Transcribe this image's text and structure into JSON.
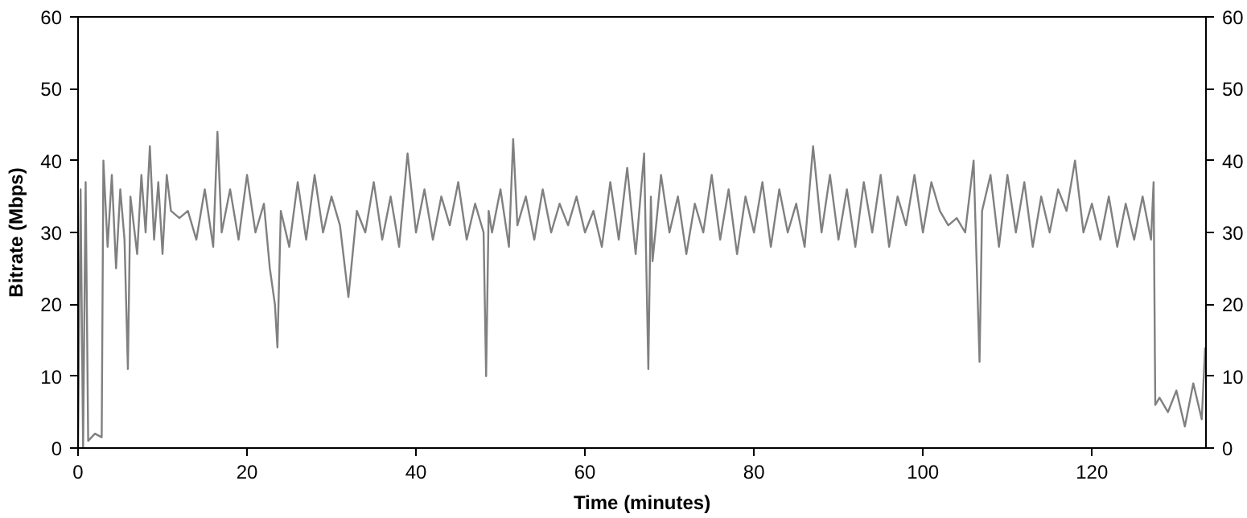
{
  "chart_data": {
    "type": "line",
    "xlabel": "Time (minutes)",
    "ylabel": "Bitrate (Mbps)",
    "xlim": [
      0,
      133.5
    ],
    "xticks": [
      0,
      20,
      40,
      60,
      80,
      100,
      120
    ],
    "ylim": [
      0,
      60
    ],
    "yticks": [
      0,
      10,
      20,
      30,
      40,
      50,
      60
    ],
    "y2lim": [
      0,
      60
    ],
    "y2ticks": [
      0,
      10,
      20,
      30,
      40,
      50,
      60
    ],
    "grid": false,
    "marker": "none",
    "line_style": "solid",
    "series": [
      {
        "color": "#808080",
        "x": [
          0,
          0.3,
          0.6,
          0.9,
          1.2,
          2,
          2.8,
          3,
          3.5,
          4,
          4.5,
          5,
          5.5,
          5.9,
          6.2,
          7,
          7.5,
          8,
          8.5,
          9,
          9.5,
          10,
          10.5,
          11,
          12,
          13,
          14,
          15,
          16,
          16.5,
          17,
          18,
          19,
          20,
          21,
          22,
          22.7,
          23.3,
          23.6,
          24,
          25,
          26,
          27,
          28,
          29,
          30,
          31,
          32,
          33,
          34,
          35,
          36,
          37,
          38,
          39,
          40,
          41,
          42,
          43,
          44,
          45,
          46,
          47,
          48,
          48.3,
          48.6,
          49,
          50,
          51,
          51.5,
          52,
          53,
          54,
          55,
          56,
          57,
          58,
          59,
          60,
          61,
          62,
          63,
          64,
          65,
          66,
          67,
          67.5,
          67.8,
          68,
          69,
          70,
          71,
          72,
          73,
          74,
          75,
          76,
          77,
          78,
          79,
          80,
          81,
          82,
          83,
          84,
          85,
          86,
          87,
          88,
          89,
          90,
          91,
          92,
          93,
          94,
          95,
          96,
          97,
          98,
          99,
          100,
          101,
          102,
          103,
          104,
          105,
          106,
          106.5,
          106.7,
          107,
          108,
          109,
          110,
          111,
          112,
          113,
          114,
          115,
          116,
          117,
          118,
          119,
          120,
          121,
          122,
          123,
          124,
          125,
          126,
          127,
          127.3,
          127.5,
          128,
          129,
          130,
          131,
          132,
          133,
          133.4
        ],
        "values": [
          0,
          36,
          0,
          37,
          1,
          2,
          1.5,
          40,
          28,
          38,
          25,
          36,
          29,
          11,
          35,
          27,
          38,
          30,
          42,
          29,
          37,
          27,
          38,
          33,
          32,
          33,
          29,
          36,
          28,
          44,
          30,
          36,
          29,
          38,
          30,
          34,
          25,
          20,
          14,
          33,
          28,
          37,
          29,
          38,
          30,
          35,
          31,
          21,
          33,
          30,
          37,
          29,
          35,
          28,
          41,
          30,
          36,
          29,
          35,
          31,
          37,
          29,
          34,
          30,
          10,
          33,
          30,
          36,
          28,
          43,
          31,
          35,
          29,
          36,
          30,
          34,
          31,
          35,
          30,
          33,
          28,
          37,
          29,
          39,
          27,
          41,
          11,
          35,
          26,
          38,
          30,
          35,
          27,
          34,
          30,
          38,
          29,
          36,
          27,
          35,
          30,
          37,
          28,
          36,
          30,
          34,
          28,
          42,
          30,
          38,
          29,
          36,
          28,
          37,
          30,
          38,
          28,
          35,
          31,
          38,
          30,
          37,
          33,
          31,
          32,
          30,
          40,
          20,
          12,
          33,
          38,
          28,
          38,
          30,
          37,
          28,
          35,
          30,
          36,
          33,
          40,
          30,
          34,
          29,
          35,
          28,
          34,
          29,
          35,
          29,
          37,
          6,
          7,
          5,
          8,
          3,
          9,
          4,
          14
        ]
      }
    ]
  }
}
